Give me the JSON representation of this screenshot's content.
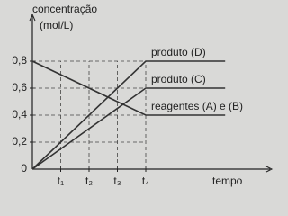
{
  "chart_data": {
    "type": "line",
    "y_label_line1": "concentração",
    "y_label_line2": "(mol/L)",
    "x_label": "tempo",
    "x": [
      0,
      4,
      6.8
    ],
    "series": [
      {
        "name": "produto (D)",
        "color": "#333333",
        "values": [
          0,
          0.8,
          0.8
        ]
      },
      {
        "name": "produto (C)",
        "color": "#333333",
        "values": [
          0,
          0.6,
          0.6
        ]
      },
      {
        "name": "reagentes (A) e (B)",
        "color": "#333333",
        "values": [
          0.8,
          0.4,
          0.4
        ]
      }
    ],
    "xlim": [
      0,
      8
    ],
    "ylim": [
      0,
      1.1
    ],
    "xticks": [
      {
        "value": 1,
        "label": "t₁"
      },
      {
        "value": 2,
        "label": "t₂"
      },
      {
        "value": 3,
        "label": "t₃"
      },
      {
        "value": 4,
        "label": "t₄"
      }
    ],
    "yticks": [
      0,
      {
        "value": 0.2,
        "label": "0,2"
      },
      {
        "value": 0.4,
        "label": "0,4"
      },
      {
        "value": 0.6,
        "label": "0,6"
      },
      {
        "value": 0.8,
        "label": "0,8"
      }
    ],
    "grid": true
  }
}
